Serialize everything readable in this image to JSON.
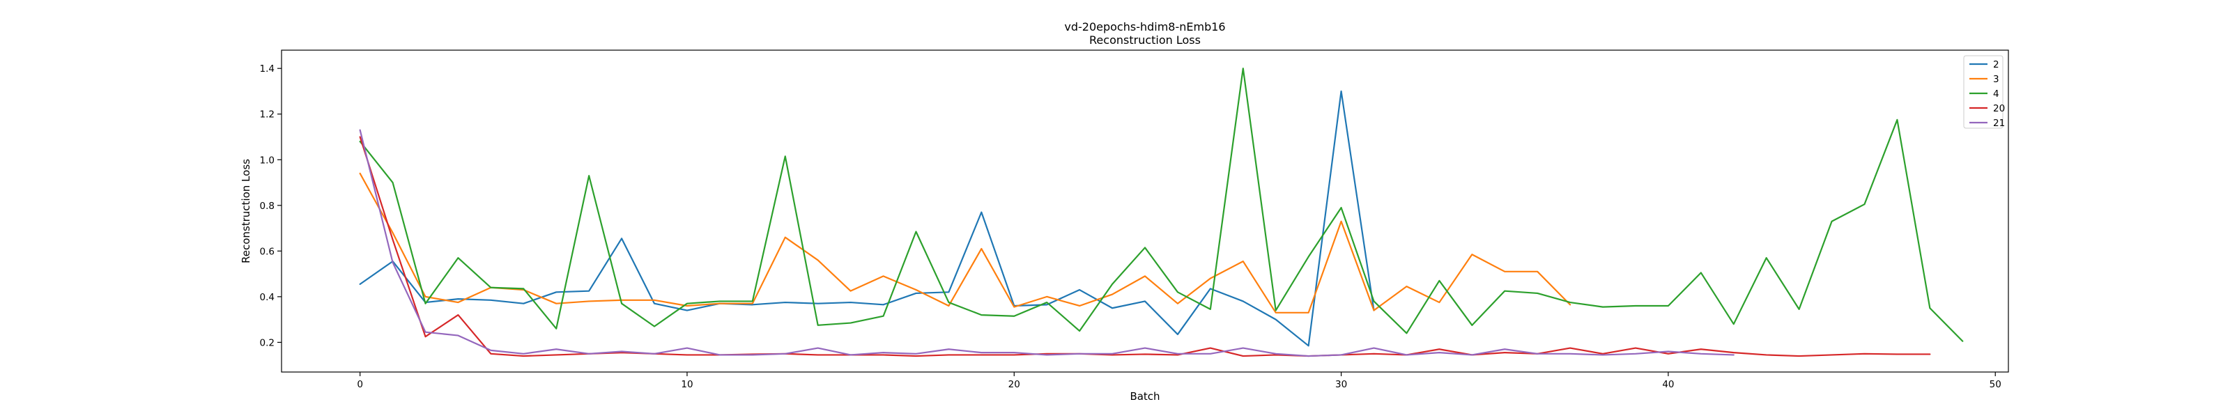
{
  "chart_data": {
    "type": "line",
    "title": "vd-20epochs-hdim8-nEmb16",
    "subtitle": "Reconstruction Loss",
    "xlabel": "Batch",
    "ylabel": "Reconstruction Loss",
    "xlim": [
      -2.4,
      50.4
    ],
    "ylim": [
      0.07,
      1.48
    ],
    "xticks": [
      0,
      10,
      20,
      30,
      40,
      50
    ],
    "yticks": [
      0.2,
      0.4,
      0.6,
      0.8,
      1.0,
      1.2,
      1.4
    ],
    "grid": false,
    "legend_position": "top-right",
    "series": [
      {
        "name": "2",
        "color": "#1f77b4",
        "values": [
          0.455,
          0.555,
          0.375,
          0.39,
          0.385,
          0.37,
          0.42,
          0.425,
          0.655,
          0.37,
          0.34,
          0.37,
          0.365,
          0.375,
          0.37,
          0.375,
          0.365,
          0.415,
          0.42,
          0.77,
          0.36,
          0.365,
          0.43,
          0.35,
          0.38,
          0.235,
          0.435,
          0.38,
          0.3,
          0.185,
          1.3,
          0.34
        ]
      },
      {
        "name": "3",
        "color": "#ff7f0e",
        "values": [
          0.94,
          0.68,
          0.4,
          0.375,
          0.44,
          0.43,
          0.37,
          0.38,
          0.385,
          0.385,
          0.36,
          0.37,
          0.37,
          0.66,
          0.56,
          0.425,
          0.49,
          0.43,
          0.36,
          0.61,
          0.355,
          0.4,
          0.36,
          0.41,
          0.49,
          0.37,
          0.48,
          0.555,
          0.33,
          0.33,
          0.73,
          0.34,
          0.445,
          0.375,
          0.585,
          0.51,
          0.51,
          0.365
        ]
      },
      {
        "name": "4",
        "color": "#2ca02c",
        "values": [
          1.08,
          0.9,
          0.37,
          0.57,
          0.44,
          0.435,
          0.26,
          0.93,
          0.37,
          0.27,
          0.37,
          0.38,
          0.38,
          1.015,
          0.275,
          0.285,
          0.315,
          0.685,
          0.375,
          0.32,
          0.315,
          0.375,
          0.25,
          0.455,
          0.615,
          0.42,
          0.345,
          1.4,
          0.34,
          0.575,
          0.79,
          0.38,
          0.24,
          0.47,
          0.275,
          0.425,
          0.415,
          0.375,
          0.355,
          0.36,
          0.36,
          0.505,
          0.28,
          0.57,
          0.345,
          0.73,
          0.805,
          1.175,
          0.35,
          0.205
        ]
      },
      {
        "name": "20",
        "color": "#d62728",
        "values": [
          1.1,
          0.65,
          0.225,
          0.32,
          0.15,
          0.14,
          0.145,
          0.15,
          0.155,
          0.15,
          0.145,
          0.145,
          0.148,
          0.15,
          0.145,
          0.145,
          0.145,
          0.14,
          0.145,
          0.145,
          0.145,
          0.15,
          0.15,
          0.145,
          0.148,
          0.145,
          0.175,
          0.14,
          0.145,
          0.14,
          0.145,
          0.15,
          0.145,
          0.17,
          0.145,
          0.155,
          0.15,
          0.175,
          0.15,
          0.175,
          0.15,
          0.17,
          0.155,
          0.145,
          0.14,
          0.145,
          0.15,
          0.148,
          0.148
        ]
      },
      {
        "name": "21",
        "color": "#9467bd",
        "values": [
          1.13,
          0.55,
          0.245,
          0.23,
          0.165,
          0.15,
          0.17,
          0.15,
          0.16,
          0.15,
          0.175,
          0.145,
          0.145,
          0.15,
          0.175,
          0.145,
          0.155,
          0.15,
          0.17,
          0.155,
          0.155,
          0.145,
          0.15,
          0.15,
          0.175,
          0.15,
          0.15,
          0.175,
          0.15,
          0.14,
          0.145,
          0.175,
          0.145,
          0.155,
          0.145,
          0.17,
          0.15,
          0.15,
          0.145,
          0.15,
          0.16,
          0.15,
          0.145
        ]
      }
    ]
  }
}
